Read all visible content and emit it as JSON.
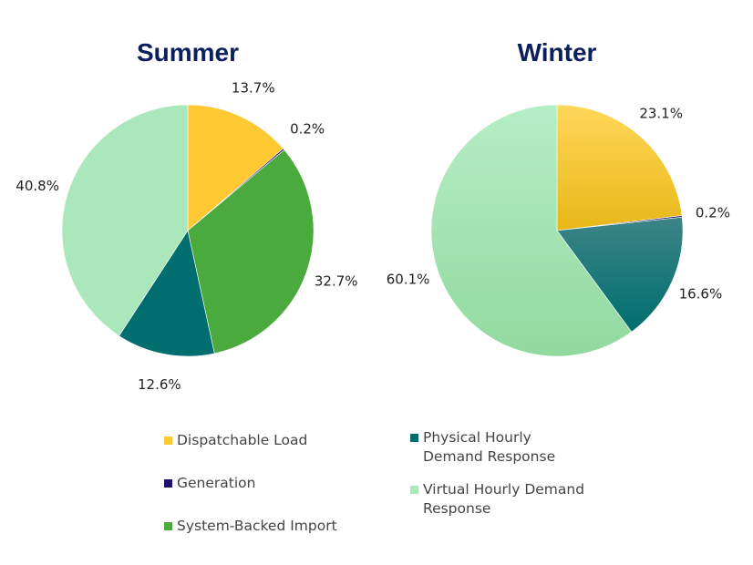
{
  "chart_data": [
    {
      "type": "pie",
      "title": "Summer",
      "slices": [
        {
          "label": "Dispatchable Load",
          "value": 13.7,
          "text": "13.7%"
        },
        {
          "label": "Generation",
          "value": 0.2,
          "text": "0.2%"
        },
        {
          "label": "System-Backed Import",
          "value": 32.7,
          "text": "32.7%"
        },
        {
          "label": "Physical Hourly Demand Response",
          "value": 12.6,
          "text": "12.6%"
        },
        {
          "label": "Virtual Hourly Demand Response",
          "value": 40.8,
          "text": "40.8%"
        }
      ]
    },
    {
      "type": "pie",
      "title": "Winter",
      "slices": [
        {
          "label": "Dispatchable Load",
          "value": 23.1,
          "text": "23.1%"
        },
        {
          "label": "Generation",
          "value": 0.2,
          "text": "0.2%"
        },
        {
          "label": "Physical Hourly Demand Response",
          "value": 16.6,
          "text": "16.6%"
        },
        {
          "label": "Virtual Hourly Demand Response",
          "value": 60.1,
          "text": "60.1%"
        }
      ]
    }
  ],
  "colors": {
    "Dispatchable Load": "#FFC933",
    "Generation": "#1F1170",
    "System-Backed Import": "#4AAA3E",
    "Physical Hourly Demand Response": "#006E6E",
    "Virtual Hourly Demand Response": "#AAE8BC"
  },
  "legend": [
    {
      "label": "Dispatchable Load",
      "color": "#FFC933"
    },
    {
      "label": "Generation",
      "color": "#1F1170"
    },
    {
      "label": "System-Backed Import",
      "color": "#4AAA3E"
    },
    {
      "label": "Physical Hourly Demand Response",
      "color": "#006E6E"
    },
    {
      "label": "Virtual Hourly Demand Response",
      "color": "#AAE8BC"
    }
  ]
}
